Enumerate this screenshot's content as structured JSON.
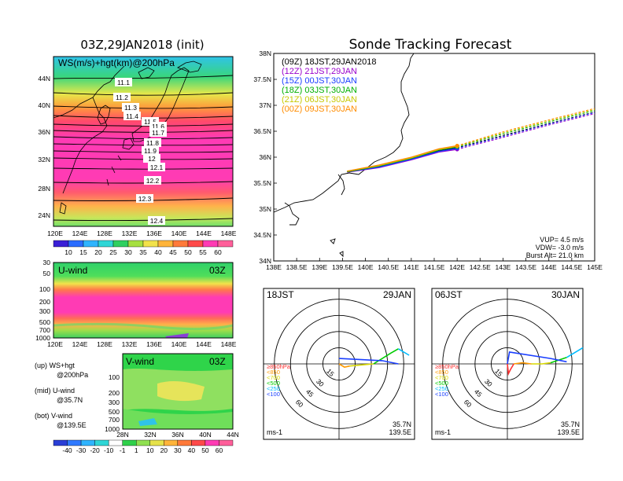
{
  "left": {
    "map_title": "03Z,29JAN2018 (init)",
    "map_label": "WS(m/s)+hgt(km)@200hPa",
    "map_lat_ticks": [
      "44N",
      "40N",
      "36N",
      "32N",
      "28N",
      "24N"
    ],
    "map_lon_ticks": [
      "120E",
      "124E",
      "128E",
      "132E",
      "136E",
      "140E",
      "144E",
      "148E"
    ],
    "contour_labels": [
      "11.1",
      "11.2",
      "11.3",
      "11.4",
      "11.5",
      "11.6",
      "11.7",
      "11.8",
      "11.9",
      "12",
      "12.1",
      "12.2",
      "12.3",
      "12.4"
    ],
    "colorbar_ticks": [
      "10",
      "15",
      "20",
      "25",
      "30",
      "35",
      "40",
      "45",
      "50",
      "55",
      "60"
    ],
    "u_panel_label": "U-wind",
    "u_panel_time": "03Z",
    "u_pressure_ticks": [
      "30",
      "50",
      "100",
      "200",
      "300",
      "500",
      "700",
      "1000"
    ],
    "u_lon_ticks": [
      "120E",
      "124E",
      "128E",
      "132E",
      "136E",
      "140E",
      "144E",
      "148E"
    ],
    "v_panel_label": "V-wind",
    "v_panel_time": "03Z",
    "v_pressure_ticks": [
      "100",
      "200",
      "300",
      "500",
      "700",
      "1000"
    ],
    "v_lat_ticks": [
      "28N",
      "32N",
      "36N",
      "40N",
      "44N"
    ],
    "legend_up_1": "(up) WS+hgt",
    "legend_up_2": "@200hPa",
    "legend_mid_1": "(mid) U-wind",
    "legend_mid_2": "@35.7N",
    "legend_bot_1": "(bot) V-wind",
    "legend_bot_2": "@139.5E",
    "bottom_colorbar_ticks": [
      "-40",
      "-30",
      "-20",
      "-10",
      "-1",
      "1",
      "10",
      "20",
      "30",
      "40",
      "50",
      "60"
    ]
  },
  "right": {
    "title": "Sonde Tracking Forecast",
    "lat_ticks": [
      "38N",
      "37.5N",
      "37N",
      "36.5N",
      "36N",
      "35.5N",
      "35N",
      "34.5N",
      "34N"
    ],
    "lon_ticks": [
      "138E",
      "138.5E",
      "139E",
      "139.5E",
      "140E",
      "140.5E",
      "141E",
      "141.5E",
      "142E",
      "142.5E",
      "143E",
      "143.5E",
      "144E",
      "144.5E",
      "145E"
    ],
    "runs": [
      {
        "label": "(09Z)  18JST,29JAN2018",
        "color": "#000000"
      },
      {
        "label": "(12Z)  21JST,29JAN",
        "color": "#9900cc"
      },
      {
        "label": "(15Z)  00JST,30JAN",
        "color": "#1a3fff"
      },
      {
        "label": "(18Z)  03JST,30JAN",
        "color": "#00b000"
      },
      {
        "label": "(21Z)  06JST,30JAN",
        "color": "#c8c800"
      },
      {
        "label": "(00Z)  09JST,30JAN",
        "color": "#ff8c00"
      }
    ],
    "vup": "VUP=  4.5  m/s",
    "vdw": "VDW= -3.0  m/s",
    "burst": "Burst  Alt=  21.0  km"
  },
  "hodo_left": {
    "time": "18JST",
    "date": "29JAN",
    "rings": [
      "15",
      "30",
      "45",
      "60"
    ],
    "levels": [
      "≥850hPa",
      "<850",
      "<700",
      "<500",
      "<250",
      "<100"
    ],
    "level_colors": [
      "#ff3030",
      "#ff9900",
      "#d8d800",
      "#00cc00",
      "#00bbff",
      "#1a3fff"
    ],
    "loc1": "35.7N",
    "loc2": "139.5E",
    "unit": "ms-1"
  },
  "hodo_right": {
    "time": "06JST",
    "date": "30JAN",
    "rings": [
      "15",
      "30",
      "45",
      "60"
    ],
    "levels": [
      "≥850hPa",
      "<850",
      "<700",
      "<500",
      "<250",
      "<100"
    ],
    "level_colors": [
      "#ff3030",
      "#ff9900",
      "#d8d800",
      "#00cc00",
      "#00bbff",
      "#1a3fff"
    ],
    "loc1": "35.7N",
    "loc2": "139.5E",
    "unit": "ms-1"
  },
  "chart_data": [
    {
      "type": "line",
      "title": "Sonde Tracking Forecast",
      "xlabel": "",
      "ylabel": "",
      "xlim": [
        138,
        145
      ],
      "ylim": [
        34,
        38
      ],
      "series": [
        {
          "name": "(09Z)  18JST,29JAN2018",
          "x": [
            139.6,
            140.3,
            141.0,
            141.6,
            142.0,
            143.0,
            144.0,
            145.0
          ],
          "y": [
            35.72,
            35.82,
            35.97,
            36.12,
            36.18,
            36.42,
            36.65,
            36.87
          ]
        },
        {
          "name": "(12Z)  21JST,29JAN",
          "x": [
            139.6,
            140.3,
            141.0,
            141.6,
            142.0,
            143.0,
            144.0,
            145.0
          ],
          "y": [
            35.71,
            35.8,
            35.95,
            36.1,
            36.15,
            36.38,
            36.62,
            36.84
          ]
        },
        {
          "name": "(15Z)  00JST,30JAN",
          "x": [
            139.6,
            140.3,
            141.0,
            141.6,
            142.0,
            143.0,
            144.0,
            145.0
          ],
          "y": [
            35.72,
            35.81,
            35.96,
            36.11,
            36.17,
            36.4,
            36.64,
            36.86
          ]
        },
        {
          "name": "(18Z)  03JST,30JAN",
          "x": [
            139.6,
            140.3,
            141.0,
            141.6,
            142.0,
            143.0,
            144.0,
            145.0
          ],
          "y": [
            35.72,
            35.83,
            35.98,
            36.14,
            36.2,
            36.45,
            36.68,
            36.9
          ]
        },
        {
          "name": "(21Z)  06JST,30JAN",
          "x": [
            139.6,
            140.3,
            141.0,
            141.6,
            142.0,
            143.0,
            144.0,
            145.0
          ],
          "y": [
            35.73,
            35.84,
            35.99,
            36.15,
            36.21,
            36.47,
            36.7,
            36.92
          ]
        },
        {
          "name": "(00Z)  09JST,30JAN",
          "x": [
            139.6,
            140.3,
            141.0,
            141.6,
            142.0,
            143.0,
            144.0,
            145.0
          ],
          "y": [
            35.73,
            35.85,
            36.0,
            36.16,
            36.22,
            36.49,
            36.72,
            36.94
          ]
        }
      ]
    },
    {
      "type": "line",
      "title": "18JST 29JAN",
      "series": [
        {
          "name": "<850",
          "u": [
            0,
            5,
            10
          ],
          "v": [
            0,
            -3,
            -2
          ]
        },
        {
          "name": "<700",
          "u": [
            10,
            20,
            32
          ],
          "v": [
            -2,
            -1,
            0
          ]
        },
        {
          "name": "<500",
          "u": [
            32,
            48,
            55
          ],
          "v": [
            0,
            10,
            14
          ]
        },
        {
          "name": "<250",
          "u": [
            55,
            65
          ],
          "v": [
            14,
            8
          ]
        },
        {
          "name": "<100",
          "u": [
            0,
            40,
            55
          ],
          "v": [
            5,
            3,
            0
          ]
        }
      ]
    },
    {
      "type": "line",
      "title": "06JST 30JAN",
      "series": [
        {
          "name": "≥850hPa",
          "u": [
            0,
            1,
            3,
            6
          ],
          "v": [
            0,
            -9,
            -5,
            0
          ]
        },
        {
          "name": "<850",
          "u": [
            6,
            14,
            22
          ],
          "v": [
            0,
            1,
            0
          ]
        },
        {
          "name": "<700",
          "u": [
            22,
            32,
            40
          ],
          "v": [
            0,
            0,
            1
          ]
        },
        {
          "name": "<500",
          "u": [
            40,
            55
          ],
          "v": [
            1,
            6
          ]
        },
        {
          "name": "<250",
          "u": [
            55,
            70
          ],
          "v": [
            6,
            15
          ]
        },
        {
          "name": "<100",
          "u": [
            0,
            2,
            40,
            55
          ],
          "v": [
            0,
            11,
            5,
            2
          ]
        }
      ]
    }
  ]
}
